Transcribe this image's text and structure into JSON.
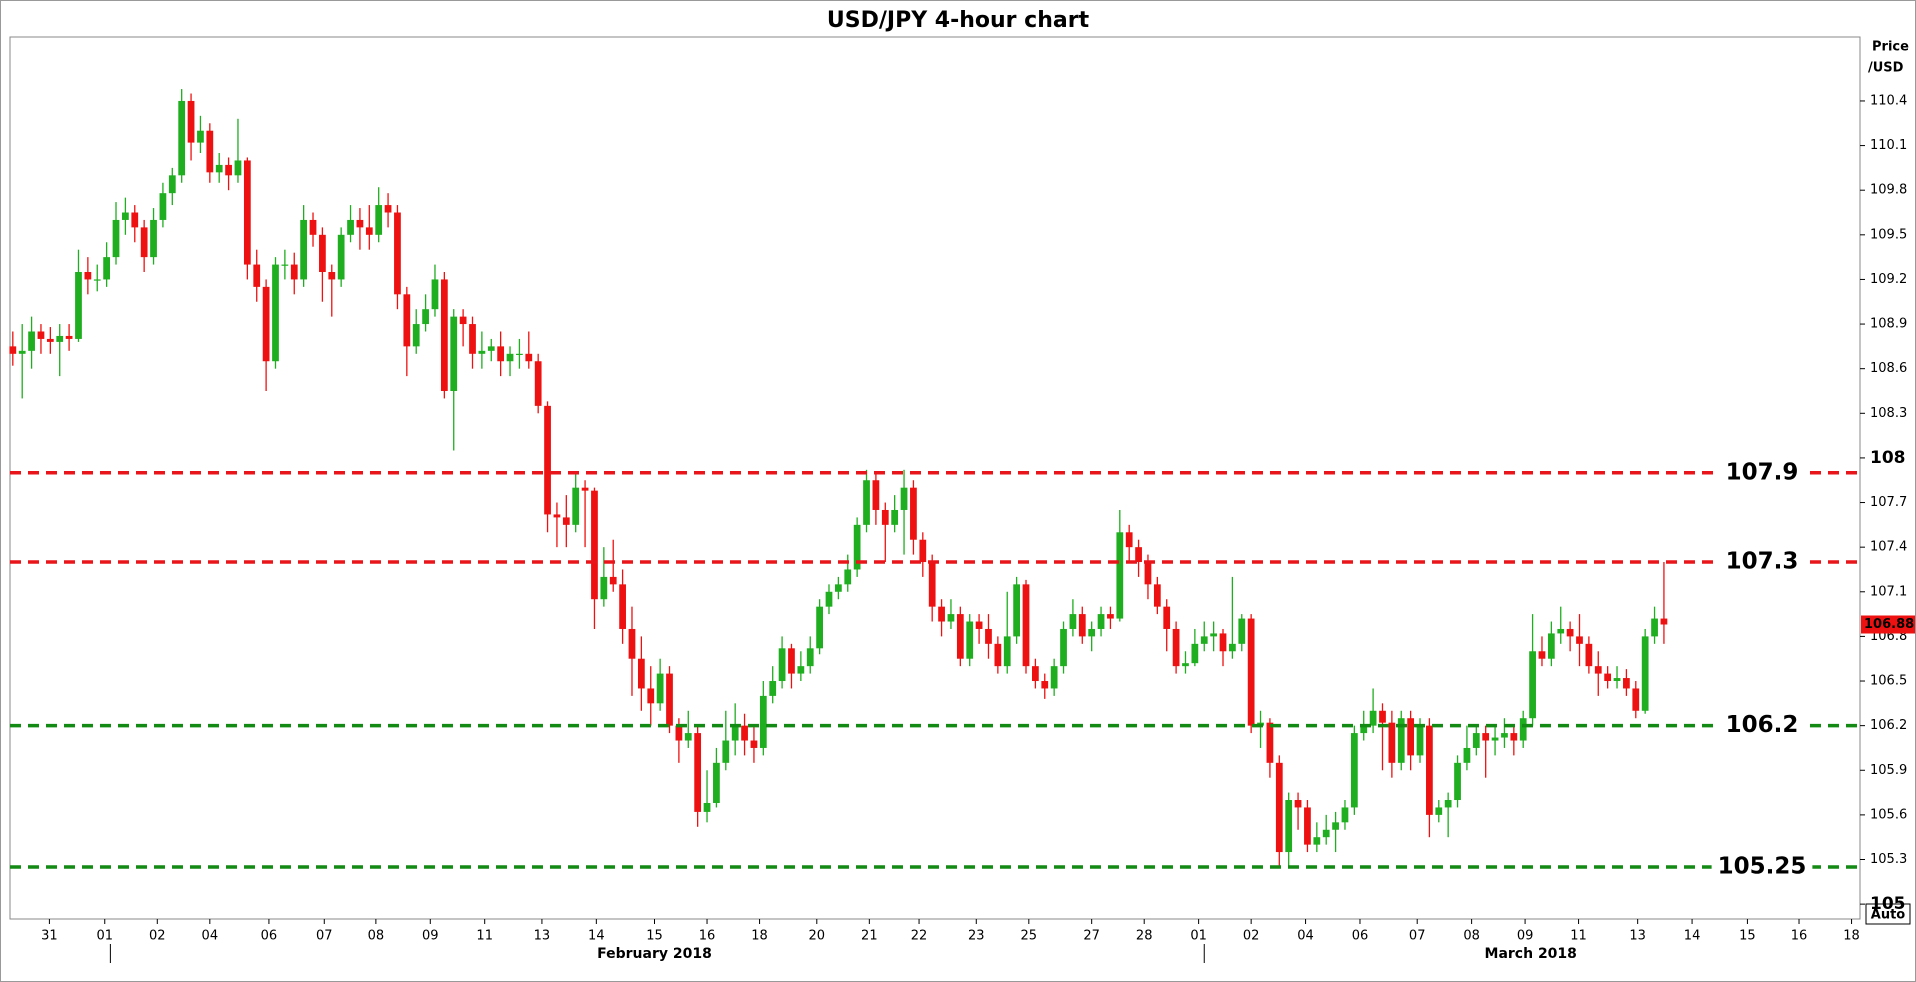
{
  "chart_data": {
    "type": "candlestick",
    "title": "USD/JPY 4-hour chart",
    "y_label": [
      "Price",
      "/USD"
    ],
    "up_color": "#1fae1f",
    "down_color": "#ee1111",
    "ylim": [
      104.9,
      110.83
    ],
    "yticks": [
      110.4,
      110.1,
      109.8,
      109.5,
      109.2,
      108.9,
      108.6,
      108.3,
      108,
      107.7,
      107.4,
      107.1,
      106.8,
      106.5,
      106.2,
      105.9,
      105.6,
      105.3,
      105
    ],
    "xlim": [
      -0.3,
      196.9
    ],
    "xticks": [
      {
        "value": 3.9,
        "label": "31"
      },
      {
        "value": 9.8,
        "label": "01"
      },
      {
        "value": 15.4,
        "label": "02"
      },
      {
        "value": 21,
        "label": "04"
      },
      {
        "value": 27.3,
        "label": "06"
      },
      {
        "value": 33.2,
        "label": "07"
      },
      {
        "value": 38.7,
        "label": "08"
      },
      {
        "value": 44.5,
        "label": "09"
      },
      {
        "value": 50.3,
        "label": "11"
      },
      {
        "value": 56.4,
        "label": "13"
      },
      {
        "value": 62.2,
        "label": "14"
      },
      {
        "value": 68.4,
        "label": "15"
      },
      {
        "value": 74,
        "label": "16"
      },
      {
        "value": 79.6,
        "label": "18"
      },
      {
        "value": 85.7,
        "label": "20"
      },
      {
        "value": 91.3,
        "label": "21"
      },
      {
        "value": 96.6,
        "label": "22"
      },
      {
        "value": 102.7,
        "label": "23"
      },
      {
        "value": 108.3,
        "label": "25"
      },
      {
        "value": 115,
        "label": "27"
      },
      {
        "value": 120.6,
        "label": "28"
      },
      {
        "value": 126.4,
        "label": "01"
      },
      {
        "value": 132,
        "label": "02"
      },
      {
        "value": 137.8,
        "label": "04"
      },
      {
        "value": 143.6,
        "label": "06"
      },
      {
        "value": 149.7,
        "label": "07"
      },
      {
        "value": 155.5,
        "label": "08"
      },
      {
        "value": 161.2,
        "label": "09"
      },
      {
        "value": 166.9,
        "label": "11"
      },
      {
        "value": 173.2,
        "label": "13"
      },
      {
        "value": 179,
        "label": "14"
      },
      {
        "value": 184.9,
        "label": "15"
      },
      {
        "value": 190.4,
        "label": "16"
      },
      {
        "value": 196,
        "label": "18"
      }
    ],
    "month_labels": [
      {
        "value": 68.4,
        "label": "February 2018"
      },
      {
        "value": 161.8,
        "label": "March 2018"
      }
    ],
    "month_starts": [
      10.4,
      127.0
    ],
    "levels": [
      {
        "value": 107.9,
        "color": "#e8161b"
      },
      {
        "value": 107.3,
        "color": "#e8161b"
      },
      {
        "value": 106.2,
        "color": "#138a13"
      },
      {
        "value": 105.25,
        "color": "#138a13"
      }
    ],
    "last_price": 106.88,
    "candles": [
      [
        108.75,
        108.85,
        108.62,
        108.7
      ],
      [
        108.7,
        108.9,
        108.4,
        108.72
      ],
      [
        108.72,
        108.95,
        108.6,
        108.85
      ],
      [
        108.85,
        108.9,
        108.7,
        108.8
      ],
      [
        108.8,
        108.88,
        108.7,
        108.78
      ],
      [
        108.78,
        108.9,
        108.55,
        108.82
      ],
      [
        108.82,
        108.9,
        108.72,
        108.8
      ],
      [
        108.8,
        109.4,
        108.78,
        109.25
      ],
      [
        109.25,
        109.35,
        109.1,
        109.2
      ],
      [
        109.2,
        109.3,
        109.12,
        109.2
      ],
      [
        109.2,
        109.45,
        109.15,
        109.35
      ],
      [
        109.35,
        109.72,
        109.3,
        109.6
      ],
      [
        109.6,
        109.75,
        109.5,
        109.65
      ],
      [
        109.65,
        109.7,
        109.45,
        109.55
      ],
      [
        109.55,
        109.6,
        109.25,
        109.35
      ],
      [
        109.35,
        109.68,
        109.3,
        109.6
      ],
      [
        109.6,
        109.85,
        109.55,
        109.78
      ],
      [
        109.78,
        109.95,
        109.7,
        109.9
      ],
      [
        109.9,
        110.48,
        109.85,
        110.4
      ],
      [
        110.4,
        110.45,
        110.0,
        110.12
      ],
      [
        110.12,
        110.3,
        110.05,
        110.2
      ],
      [
        110.2,
        110.25,
        109.85,
        109.92
      ],
      [
        109.92,
        110.05,
        109.85,
        109.97
      ],
      [
        109.97,
        110.02,
        109.8,
        109.9
      ],
      [
        109.9,
        110.28,
        109.85,
        110.0
      ],
      [
        110.0,
        110.02,
        109.2,
        109.3
      ],
      [
        109.3,
        109.4,
        109.05,
        109.15
      ],
      [
        109.15,
        109.2,
        108.45,
        108.65
      ],
      [
        108.65,
        109.35,
        108.6,
        109.3
      ],
      [
        109.3,
        109.4,
        109.2,
        109.3
      ],
      [
        109.3,
        109.38,
        109.1,
        109.2
      ],
      [
        109.2,
        109.7,
        109.15,
        109.6
      ],
      [
        109.6,
        109.65,
        109.42,
        109.5
      ],
      [
        109.5,
        109.55,
        109.05,
        109.25
      ],
      [
        109.25,
        109.3,
        108.95,
        109.2
      ],
      [
        109.2,
        109.55,
        109.15,
        109.5
      ],
      [
        109.5,
        109.7,
        109.45,
        109.6
      ],
      [
        109.6,
        109.68,
        109.4,
        109.55
      ],
      [
        109.55,
        109.7,
        109.4,
        109.5
      ],
      [
        109.5,
        109.82,
        109.45,
        109.7
      ],
      [
        109.7,
        109.78,
        109.55,
        109.65
      ],
      [
        109.65,
        109.7,
        109.0,
        109.1
      ],
      [
        109.1,
        109.15,
        108.55,
        108.75
      ],
      [
        108.75,
        109.0,
        108.7,
        108.9
      ],
      [
        108.9,
        109.1,
        108.85,
        109.0
      ],
      [
        109.0,
        109.3,
        108.95,
        109.2
      ],
      [
        109.2,
        109.25,
        108.4,
        108.45
      ],
      [
        108.45,
        109.0,
        108.05,
        108.95
      ],
      [
        108.95,
        109.0,
        108.75,
        108.9
      ],
      [
        108.9,
        108.95,
        108.6,
        108.7
      ],
      [
        108.7,
        108.85,
        108.6,
        108.72
      ],
      [
        108.72,
        108.8,
        108.65,
        108.75
      ],
      [
        108.75,
        108.85,
        108.55,
        108.65
      ],
      [
        108.65,
        108.75,
        108.55,
        108.7
      ],
      [
        108.7,
        108.8,
        108.6,
        108.7
      ],
      [
        108.7,
        108.85,
        108.6,
        108.65
      ],
      [
        108.65,
        108.7,
        108.3,
        108.35
      ],
      [
        108.35,
        108.38,
        107.5,
        107.62
      ],
      [
        107.62,
        107.7,
        107.4,
        107.6
      ],
      [
        107.6,
        107.75,
        107.4,
        107.55
      ],
      [
        107.55,
        107.9,
        107.5,
        107.8
      ],
      [
        107.8,
        107.85,
        107.4,
        107.78
      ],
      [
        107.78,
        107.8,
        106.85,
        107.05
      ],
      [
        107.05,
        107.4,
        107.0,
        107.2
      ],
      [
        107.2,
        107.45,
        107.1,
        107.15
      ],
      [
        107.15,
        107.25,
        106.75,
        106.85
      ],
      [
        106.85,
        107.0,
        106.4,
        106.65
      ],
      [
        106.65,
        106.8,
        106.3,
        106.45
      ],
      [
        106.45,
        106.6,
        106.2,
        106.35
      ],
      [
        106.35,
        106.65,
        106.3,
        106.55
      ],
      [
        106.55,
        106.6,
        106.15,
        106.2
      ],
      [
        106.2,
        106.25,
        105.95,
        106.1
      ],
      [
        106.1,
        106.3,
        106.05,
        106.15
      ],
      [
        106.15,
        106.2,
        105.52,
        105.62
      ],
      [
        105.62,
        105.9,
        105.55,
        105.68
      ],
      [
        105.68,
        106.05,
        105.65,
        105.95
      ],
      [
        105.95,
        106.3,
        105.9,
        106.1
      ],
      [
        106.1,
        106.35,
        106.0,
        106.2
      ],
      [
        106.2,
        106.28,
        106.0,
        106.1
      ],
      [
        106.1,
        106.2,
        105.95,
        106.05
      ],
      [
        106.05,
        106.5,
        106.0,
        106.4
      ],
      [
        106.4,
        106.6,
        106.35,
        106.5
      ],
      [
        106.5,
        106.8,
        106.45,
        106.72
      ],
      [
        106.72,
        106.75,
        106.45,
        106.55
      ],
      [
        106.55,
        106.7,
        106.5,
        106.6
      ],
      [
        106.6,
        106.8,
        106.55,
        106.72
      ],
      [
        106.72,
        107.05,
        106.68,
        107.0
      ],
      [
        107.0,
        107.15,
        106.95,
        107.1
      ],
      [
        107.1,
        107.2,
        107.05,
        107.15
      ],
      [
        107.15,
        107.35,
        107.1,
        107.25
      ],
      [
        107.25,
        107.6,
        107.2,
        107.55
      ],
      [
        107.55,
        107.92,
        107.5,
        107.85
      ],
      [
        107.85,
        107.9,
        107.55,
        107.65
      ],
      [
        107.65,
        107.7,
        107.3,
        107.55
      ],
      [
        107.55,
        107.75,
        107.5,
        107.65
      ],
      [
        107.65,
        107.92,
        107.35,
        107.8
      ],
      [
        107.8,
        107.85,
        107.35,
        107.45
      ],
      [
        107.45,
        107.5,
        107.2,
        107.3
      ],
      [
        107.3,
        107.35,
        106.9,
        107.0
      ],
      [
        107.0,
        107.05,
        106.8,
        106.9
      ],
      [
        106.9,
        107.05,
        106.85,
        106.95
      ],
      [
        106.95,
        107.0,
        106.6,
        106.65
      ],
      [
        106.65,
        106.95,
        106.6,
        106.9
      ],
      [
        106.9,
        106.95,
        106.75,
        106.85
      ],
      [
        106.85,
        106.95,
        106.65,
        106.75
      ],
      [
        106.75,
        106.8,
        106.55,
        106.6
      ],
      [
        106.6,
        107.1,
        106.55,
        106.8
      ],
      [
        106.8,
        107.2,
        106.75,
        107.15
      ],
      [
        107.15,
        107.18,
        106.55,
        106.6
      ],
      [
        106.6,
        106.65,
        106.45,
        106.5
      ],
      [
        106.5,
        106.55,
        106.38,
        106.45
      ],
      [
        106.45,
        106.65,
        106.4,
        106.6
      ],
      [
        106.6,
        106.9,
        106.55,
        106.85
      ],
      [
        106.85,
        107.05,
        106.8,
        106.95
      ],
      [
        106.95,
        107.0,
        106.75,
        106.8
      ],
      [
        106.8,
        106.9,
        106.7,
        106.85
      ],
      [
        106.85,
        107.0,
        106.8,
        106.95
      ],
      [
        106.95,
        107.0,
        106.85,
        106.92
      ],
      [
        106.92,
        107.65,
        106.9,
        107.5
      ],
      [
        107.5,
        107.55,
        107.3,
        107.4
      ],
      [
        107.4,
        107.45,
        107.2,
        107.3
      ],
      [
        107.3,
        107.35,
        107.05,
        107.15
      ],
      [
        107.15,
        107.2,
        106.95,
        107.0
      ],
      [
        107.0,
        107.05,
        106.7,
        106.85
      ],
      [
        106.85,
        106.9,
        106.55,
        106.6
      ],
      [
        106.6,
        106.7,
        106.55,
        106.62
      ],
      [
        106.62,
        106.85,
        106.6,
        106.75
      ],
      [
        106.75,
        106.9,
        106.7,
        106.8
      ],
      [
        106.8,
        106.9,
        106.7,
        106.82
      ],
      [
        106.82,
        106.85,
        106.6,
        106.7
      ],
      [
        106.7,
        107.2,
        106.65,
        106.75
      ],
      [
        106.75,
        106.95,
        106.7,
        106.92
      ],
      [
        106.92,
        106.95,
        106.15,
        106.2
      ],
      [
        106.2,
        106.3,
        106.05,
        106.22
      ],
      [
        106.22,
        106.25,
        105.85,
        105.95
      ],
      [
        105.95,
        106.0,
        105.25,
        105.35
      ],
      [
        105.35,
        105.75,
        105.25,
        105.7
      ],
      [
        105.7,
        105.75,
        105.5,
        105.65
      ],
      [
        105.65,
        105.7,
        105.35,
        105.4
      ],
      [
        105.4,
        105.55,
        105.35,
        105.45
      ],
      [
        105.45,
        105.6,
        105.4,
        105.5
      ],
      [
        105.5,
        105.62,
        105.35,
        105.55
      ],
      [
        105.55,
        105.7,
        105.5,
        105.65
      ],
      [
        105.65,
        106.2,
        105.6,
        106.15
      ],
      [
        106.15,
        106.3,
        106.1,
        106.2
      ],
      [
        106.2,
        106.45,
        106.15,
        106.3
      ],
      [
        106.3,
        106.35,
        105.9,
        106.22
      ],
      [
        106.22,
        106.3,
        105.85,
        105.95
      ],
      [
        105.95,
        106.3,
        105.9,
        106.25
      ],
      [
        106.25,
        106.3,
        105.9,
        106.0
      ],
      [
        106.0,
        106.25,
        105.95,
        106.2
      ],
      [
        106.2,
        106.25,
        105.45,
        105.6
      ],
      [
        105.6,
        105.7,
        105.55,
        105.65
      ],
      [
        105.65,
        105.75,
        105.45,
        105.7
      ],
      [
        105.7,
        106.0,
        105.65,
        105.95
      ],
      [
        105.95,
        106.2,
        105.9,
        106.05
      ],
      [
        106.05,
        106.2,
        106.0,
        106.15
      ],
      [
        106.15,
        106.2,
        105.85,
        106.1
      ],
      [
        106.1,
        106.2,
        106.0,
        106.12
      ],
      [
        106.12,
        106.25,
        106.05,
        106.15
      ],
      [
        106.15,
        106.2,
        106.0,
        106.1
      ],
      [
        106.1,
        106.3,
        106.05,
        106.25
      ],
      [
        106.25,
        106.95,
        106.2,
        106.7
      ],
      [
        106.7,
        106.8,
        106.6,
        106.65
      ],
      [
        106.65,
        106.9,
        106.6,
        106.82
      ],
      [
        106.82,
        107.0,
        106.75,
        106.85
      ],
      [
        106.85,
        106.9,
        106.7,
        106.8
      ],
      [
        106.8,
        106.95,
        106.6,
        106.75
      ],
      [
        106.75,
        106.8,
        106.55,
        106.6
      ],
      [
        106.6,
        106.7,
        106.4,
        106.55
      ],
      [
        106.55,
        106.6,
        106.45,
        106.5
      ],
      [
        106.5,
        106.6,
        106.45,
        106.52
      ],
      [
        106.52,
        106.58,
        106.4,
        106.45
      ],
      [
        106.45,
        106.5,
        106.25,
        106.3
      ],
      [
        106.3,
        106.85,
        106.28,
        106.8
      ],
      [
        106.8,
        107.0,
        106.75,
        106.92
      ],
      [
        106.92,
        107.3,
        106.75,
        106.88
      ]
    ]
  },
  "controls": {
    "auto": "Auto"
  }
}
